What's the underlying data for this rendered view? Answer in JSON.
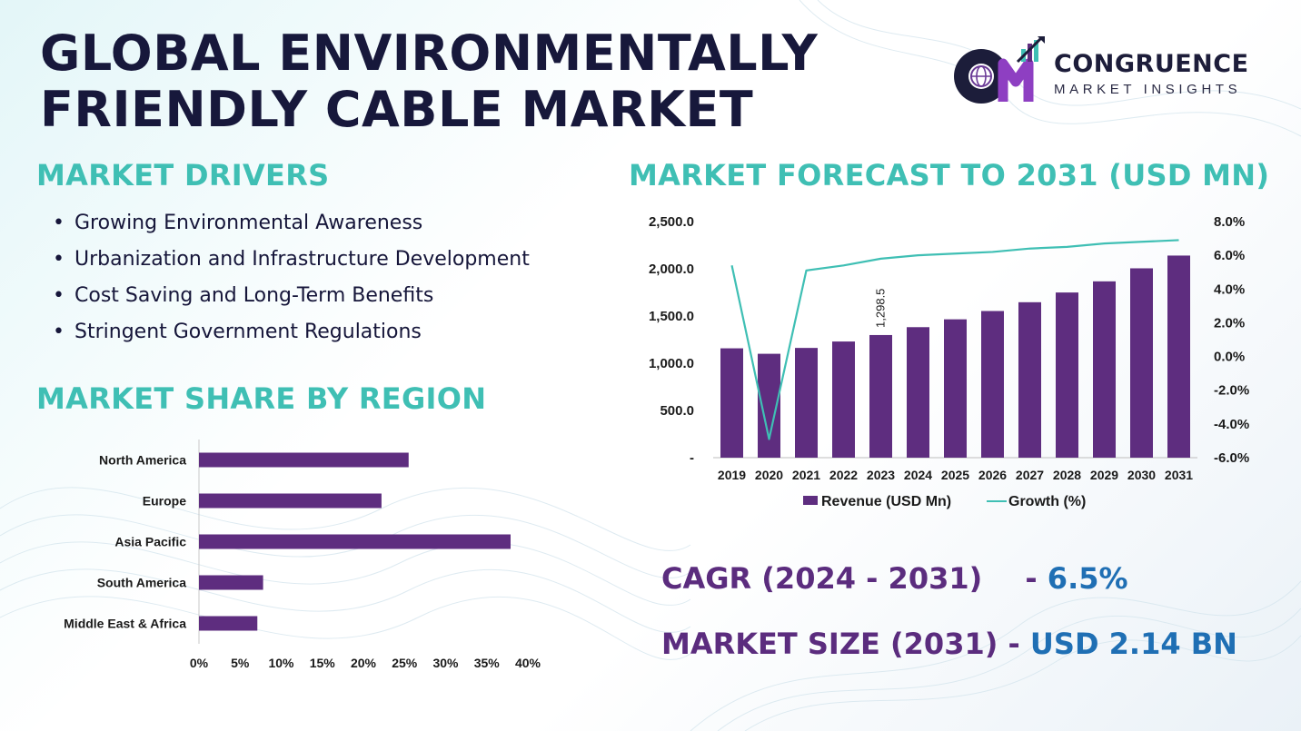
{
  "title": {
    "line1": "GLOBAL ENVIRONMENTALLY",
    "line2": "FRIENDLY CABLE MARKET"
  },
  "logo": {
    "initials": "CM",
    "name": "CONGRUENCE",
    "sub": "MARKET INSIGHTS",
    "icon": "globe-bar-chart-logo-icon"
  },
  "drivers": {
    "heading": "MARKET DRIVERS",
    "items": [
      "Growing Environmental  Awareness",
      "Urbanization and Infrastructure Development",
      "Cost Saving and Long-Term Benefits",
      "Stringent Government Regulations"
    ]
  },
  "region": {
    "heading": "MARKET SHARE BY REGION"
  },
  "forecast": {
    "heading": "MARKET FORECAST TO 2031 (USD MN)"
  },
  "stats": {
    "cagr_label": "CAGR (2024 - 2031)",
    "cagr_sep": "-",
    "cagr_value": "6.5%",
    "size_label": "MARKET SIZE (2031)",
    "size_sep": "-",
    "size_value": "USD 2.14 BN"
  },
  "colors": {
    "bar": "#5e2d7f",
    "line": "#3fbfb4",
    "title": "#17183b",
    "heading": "#3fbfb4",
    "stat_label": "#5b2c7e",
    "stat_value": "#1f6fb4"
  },
  "chart_data": [
    {
      "type": "bar",
      "orientation": "horizontal",
      "categories": [
        "North America",
        "Europe",
        "Asia Pacific",
        "South America",
        "Middle East & Africa"
      ],
      "values": [
        25.5,
        22.2,
        37.9,
        7.8,
        7.1
      ],
      "xlim": [
        0,
        40
      ],
      "x_ticks": [
        0,
        5,
        10,
        15,
        20,
        25,
        30,
        35,
        40
      ],
      "x_tick_labels": [
        "0%",
        "5%",
        "10%",
        "15%",
        "20%",
        "25%",
        "30%",
        "35%",
        "40%"
      ],
      "grid": false
    },
    {
      "type": "bar",
      "categories": [
        "2019",
        "2020",
        "2021",
        "2022",
        "2023",
        "2024",
        "2025",
        "2026",
        "2027",
        "2028",
        "2029",
        "2030",
        "2031"
      ],
      "series": [
        {
          "name": "Revenue (USD Mn)",
          "kind": "bar",
          "axis": "left",
          "values": [
            1158,
            1100,
            1162,
            1230,
            1298.5,
            1382,
            1465,
            1553,
            1646,
            1749,
            1867,
            2005,
            2140
          ]
        },
        {
          "name": "Growth (%)",
          "kind": "line",
          "axis": "right",
          "values": [
            5.4,
            -4.9,
            5.1,
            5.4,
            5.8,
            6.0,
            6.1,
            6.2,
            6.4,
            6.5,
            6.7,
            6.8,
            6.9
          ]
        }
      ],
      "data_labels": [
        {
          "category": "2023",
          "text": "1,298.5"
        }
      ],
      "ylim_left": [
        0,
        2500
      ],
      "y_left_ticks": [
        0,
        500,
        1000,
        1500,
        2000,
        2500
      ],
      "y_left_tick_labels": [
        "-",
        "500.0",
        "1,000.0",
        "1,500.0",
        "2,000.0",
        "2,500.0"
      ],
      "ylim_right": [
        -6,
        8
      ],
      "y_right_ticks": [
        -6,
        -4,
        -2,
        0,
        2,
        4,
        6,
        8
      ],
      "y_right_tick_labels": [
        "-6.0%",
        "-4.0%",
        "-2.0%",
        "0.0%",
        "2.0%",
        "4.0%",
        "6.0%",
        "8.0%"
      ],
      "legend": "bottom",
      "grid": false
    }
  ]
}
